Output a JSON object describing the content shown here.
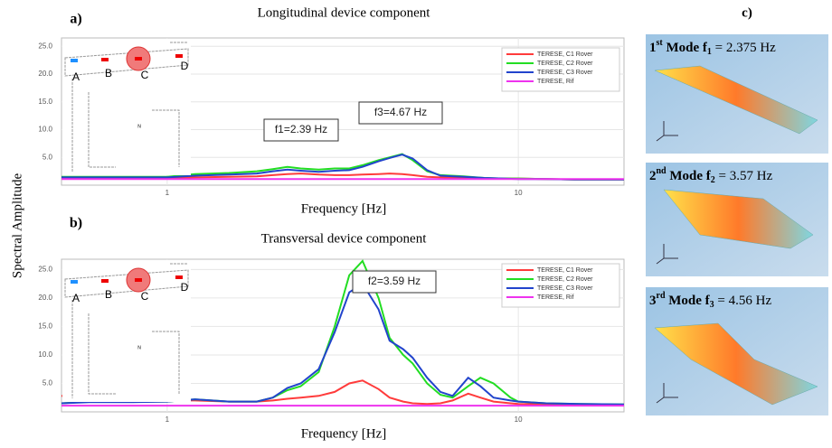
{
  "ylabel": "Spectral Amplitude",
  "chart_data": [
    {
      "type": "line",
      "panel_label": "a)",
      "title": "Longitudinal device component",
      "xlabel": "Frequency [Hz]",
      "log_x": true,
      "grid": true,
      "xlim": [
        0.5,
        20
      ],
      "xticks": [
        1,
        10
      ],
      "ylim": [
        0,
        26.5
      ],
      "yticks": [
        {
          "value": 5,
          "label": "5.0"
        },
        {
          "value": 10,
          "label": "10.0"
        },
        {
          "value": 15,
          "label": "15.0"
        },
        {
          "value": 20,
          "label": "20.0"
        },
        {
          "value": 25,
          "label": "25.0"
        }
      ],
      "x": [
        0.5,
        0.6,
        0.7,
        0.8,
        1.0,
        1.2,
        1.5,
        1.8,
        2.0,
        2.2,
        2.4,
        2.7,
        3.0,
        3.3,
        3.6,
        4.0,
        4.3,
        4.67,
        5.0,
        5.5,
        6.0,
        7.0,
        8.0,
        9.0,
        10,
        12,
        15,
        20
      ],
      "series": [
        {
          "name": "TERESE, C1 Rover",
          "color": "#ff3b3b",
          "values": [
            1.3,
            1.3,
            1.3,
            1.3,
            1.3,
            1.4,
            1.5,
            1.6,
            1.8,
            2.0,
            2.1,
            1.9,
            1.8,
            1.8,
            1.9,
            2.0,
            2.1,
            2.0,
            1.8,
            1.5,
            1.4,
            1.3,
            1.2,
            1.2,
            1.2,
            1.1,
            1.0,
            1.0
          ]
        },
        {
          "name": "TERESE, C2 Rover",
          "color": "#22dd22",
          "values": [
            1.5,
            1.5,
            1.5,
            1.5,
            1.5,
            2.0,
            2.2,
            2.5,
            2.9,
            3.3,
            3.0,
            2.8,
            3.0,
            3.0,
            3.6,
            4.5,
            5.0,
            5.6,
            4.5,
            2.5,
            1.8,
            1.6,
            1.3,
            1.2,
            1.2,
            1.1,
            1.0,
            1.0
          ]
        },
        {
          "name": "TERESE, C3 Rover",
          "color": "#2244cc",
          "values": [
            1.4,
            1.4,
            1.4,
            1.4,
            1.4,
            1.7,
            1.9,
            2.1,
            2.5,
            2.8,
            2.6,
            2.4,
            2.6,
            2.7,
            3.3,
            4.3,
            4.9,
            5.5,
            4.8,
            2.7,
            1.7,
            1.5,
            1.3,
            1.2,
            1.1,
            1.1,
            1.0,
            1.0
          ]
        },
        {
          "name": "TERESE, Rif",
          "color": "#ee33ee",
          "values": [
            1.1,
            1.1,
            1.1,
            1.1,
            1.1,
            1.1,
            1.1,
            1.1,
            1.1,
            1.1,
            1.1,
            1.1,
            1.1,
            1.1,
            1.1,
            1.1,
            1.1,
            1.1,
            1.1,
            1.1,
            1.1,
            1.1,
            1.1,
            1.1,
            1.1,
            1.1,
            1.1,
            1.1
          ]
        }
      ],
      "annotations": [
        "f1=2.39 Hz",
        "f3=4.67 Hz"
      ],
      "inset_labels": [
        "A",
        "B",
        "C",
        "D",
        "N"
      ]
    },
    {
      "type": "line",
      "panel_label": "b)",
      "title": "Transversal device component",
      "xlabel": "Frequency [Hz]",
      "log_x": true,
      "grid": true,
      "xlim": [
        0.5,
        20
      ],
      "xticks": [
        1,
        10
      ],
      "ylim": [
        0,
        26.8
      ],
      "yticks": [
        {
          "value": 5,
          "label": "5.0"
        },
        {
          "value": 10,
          "label": "10.0"
        },
        {
          "value": 15,
          "label": "15.0"
        },
        {
          "value": 20,
          "label": "20.0"
        },
        {
          "value": 25,
          "label": "25.0"
        }
      ],
      "x": [
        0.5,
        0.6,
        0.7,
        0.8,
        1.0,
        1.2,
        1.5,
        1.8,
        2.0,
        2.2,
        2.4,
        2.7,
        3.0,
        3.3,
        3.6,
        4.0,
        4.3,
        4.7,
        5.0,
        5.5,
        6.0,
        6.5,
        7.2,
        7.8,
        8.5,
        9.5,
        10,
        12,
        15,
        20
      ],
      "series": [
        {
          "name": "TERESE, C1 Rover",
          "color": "#ff3b3b",
          "values": [
            2.8,
            2.3,
            2.0,
            2.0,
            2.0,
            2.0,
            1.8,
            1.8,
            2.0,
            2.3,
            2.5,
            2.8,
            3.5,
            5.0,
            5.5,
            4.0,
            2.5,
            1.8,
            1.5,
            1.4,
            1.5,
            2.0,
            3.2,
            2.5,
            1.8,
            1.5,
            1.4,
            1.3,
            1.2,
            1.2
          ]
        },
        {
          "name": "TERESE, C2 Rover",
          "color": "#22dd22",
          "values": [
            1.5,
            1.8,
            1.8,
            1.8,
            1.8,
            2.2,
            1.8,
            1.8,
            2.5,
            3.8,
            4.5,
            7.0,
            15.0,
            24.0,
            26.5,
            20.0,
            13.0,
            10.0,
            8.5,
            5.0,
            3.0,
            2.5,
            4.5,
            6.0,
            5.0,
            2.5,
            1.8,
            1.5,
            1.4,
            1.3
          ]
        },
        {
          "name": "TERESE, C3 Rover",
          "color": "#2244cc",
          "values": [
            1.5,
            1.7,
            1.7,
            1.7,
            1.8,
            2.2,
            1.8,
            1.8,
            2.5,
            4.2,
            5.0,
            7.5,
            14.0,
            21.0,
            22.5,
            18.0,
            12.5,
            11.0,
            9.5,
            6.0,
            3.5,
            2.8,
            6.0,
            4.5,
            2.5,
            2.0,
            1.8,
            1.5,
            1.4,
            1.3
          ]
        },
        {
          "name": "TERESE, Rif",
          "color": "#ee33ee",
          "values": [
            1.1,
            1.1,
            1.1,
            1.1,
            1.1,
            1.1,
            1.1,
            1.1,
            1.1,
            1.1,
            1.1,
            1.1,
            1.1,
            1.1,
            1.1,
            1.1,
            1.1,
            1.1,
            1.1,
            1.1,
            1.1,
            1.1,
            1.1,
            1.1,
            1.1,
            1.1,
            1.1,
            1.1,
            1.1,
            1.1
          ]
        }
      ],
      "annotations": [
        "f2=3.59 Hz"
      ],
      "inset_labels": [
        "A",
        "B",
        "C",
        "D",
        "N"
      ]
    }
  ],
  "mode_panel": {
    "label": "c)",
    "modes": [
      {
        "ordinal": "1",
        "suffix": "st",
        "word": " Mode f",
        "index": "1",
        "rest": " = 2.375 Hz"
      },
      {
        "ordinal": "2",
        "suffix": "nd",
        "word": " Mode f",
        "index": "2",
        "rest": " = 3.57 Hz"
      },
      {
        "ordinal": "3",
        "suffix": "rd",
        "word": " Mode f",
        "index": "3",
        "rest": " = 4.56 Hz"
      }
    ]
  }
}
